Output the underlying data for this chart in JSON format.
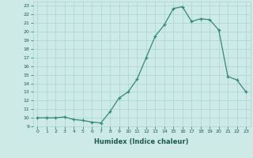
{
  "x": [
    0,
    1,
    2,
    3,
    4,
    5,
    6,
    7,
    8,
    9,
    10,
    11,
    12,
    13,
    14,
    15,
    16,
    17,
    18,
    19,
    20,
    21,
    22,
    23
  ],
  "y": [
    10.0,
    10.0,
    10.0,
    10.1,
    9.8,
    9.7,
    9.5,
    9.4,
    10.7,
    12.3,
    13.0,
    14.5,
    17.0,
    19.5,
    20.8,
    22.7,
    22.9,
    21.2,
    21.5,
    21.4,
    20.2,
    14.8,
    14.4,
    13.0
  ],
  "xlabel": "Humidex (Indice chaleur)",
  "xlim": [
    -0.5,
    23.5
  ],
  "ylim": [
    9.0,
    23.5
  ],
  "yticks": [
    9,
    10,
    11,
    12,
    13,
    14,
    15,
    16,
    17,
    18,
    19,
    20,
    21,
    22,
    23
  ],
  "xticks": [
    0,
    1,
    2,
    3,
    4,
    5,
    6,
    7,
    8,
    9,
    10,
    11,
    12,
    13,
    14,
    15,
    16,
    17,
    18,
    19,
    20,
    21,
    22,
    23
  ],
  "line_color": "#2e8b77",
  "bg_color": "#ceeae6",
  "grid_color": "#a8d5cf",
  "label_color": "#1a5c50",
  "tick_color": "#1a5c50"
}
